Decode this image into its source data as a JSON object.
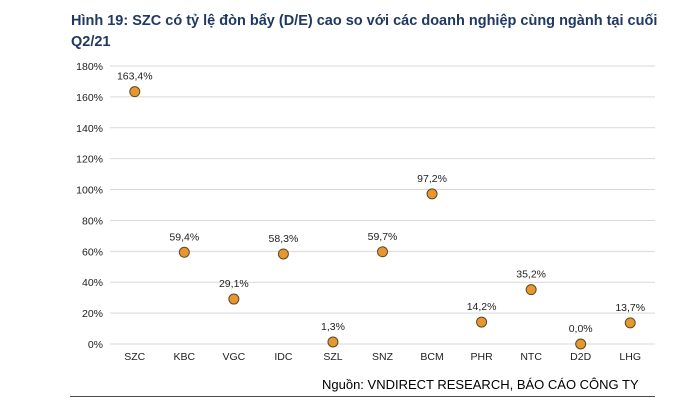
{
  "title": "Hình 19: SZC có tỷ lệ đòn bẩy (D/E) cao so với các doanh nghiệp cùng ngành tại cuối Q2/21",
  "source": "Nguồn: VNDIRECT RESEARCH, BÁO CÁO CÔNG TY",
  "colors": {
    "marker_fill": "#e8962e",
    "marker_stroke": "#5a4a2a",
    "grid": "#d9d9d9"
  },
  "chart_data": {
    "type": "scatter",
    "title": "",
    "xlabel": "",
    "ylabel": "",
    "ylim": [
      0,
      180
    ],
    "y_ticks": [
      "0%",
      "20%",
      "40%",
      "60%",
      "80%",
      "100%",
      "120%",
      "140%",
      "160%",
      "180%"
    ],
    "grid": true,
    "legend": "none",
    "categories": [
      "SZC",
      "KBC",
      "VGC",
      "IDC",
      "SZL",
      "SNZ",
      "BCM",
      "PHR",
      "NTC",
      "D2D",
      "LHG"
    ],
    "values": [
      163.4,
      59.4,
      29.1,
      58.3,
      1.3,
      59.7,
      97.2,
      14.2,
      35.2,
      0.0,
      13.7
    ],
    "data_labels": [
      "163,4%",
      "59,4%",
      "29,1%",
      "58,3%",
      "1,3%",
      "59,7%",
      "97,2%",
      "14,2%",
      "35,2%",
      "0,0%",
      "13,7%"
    ]
  }
}
